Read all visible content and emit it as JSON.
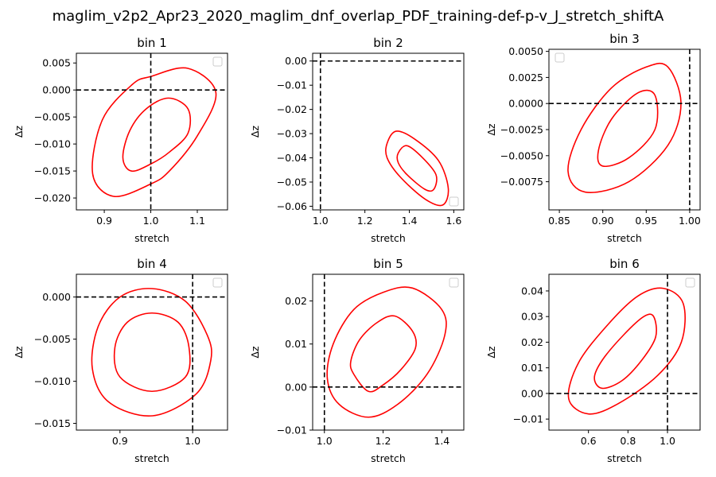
{
  "figure": {
    "suptitle": "maglim_v2p2_Apr23_2020_maglim_dnf_overlap_PDF_training-def-p-v_J_stretch_shiftA"
  },
  "chart_data": [
    {
      "type": "contour",
      "title": "bin 1",
      "xlabel": "stretch",
      "ylabel": "Δz",
      "xlim": [
        0.84,
        1.165
      ],
      "ylim": [
        -0.0222,
        0.0068
      ],
      "xticks": [
        {
          "v": 0.9,
          "label": "0.9"
        },
        {
          "v": 1.0,
          "label": "1.0"
        },
        {
          "v": 1.1,
          "label": "1.1"
        }
      ],
      "yticks": [
        {
          "v": 0.005,
          "label": "0.005"
        },
        {
          "v": 0.0,
          "label": "0.000"
        },
        {
          "v": -0.005,
          "label": "−0.005"
        },
        {
          "v": -0.01,
          "label": "−0.010"
        },
        {
          "v": -0.015,
          "label": "−0.015"
        },
        {
          "v": -0.02,
          "label": "−0.020"
        }
      ],
      "vline": 1.0,
      "hline": 0.0,
      "legend": "upper right",
      "line_color": "#ff0000",
      "contours": [
        [
          [
            1.0,
            -0.0174
          ],
          [
            0.92,
            -0.0197
          ],
          [
            0.875,
            -0.0155
          ],
          [
            0.896,
            -0.0055
          ],
          [
            0.96,
            0.001
          ],
          [
            1.0,
            0.0025
          ],
          [
            1.08,
            0.004
          ],
          [
            1.14,
            -0.0005
          ],
          [
            1.1,
            -0.0085
          ],
          [
            1.04,
            -0.015
          ],
          [
            1.0,
            -0.0174
          ]
        ],
        [
          [
            0.958,
            -0.015
          ],
          [
            0.94,
            -0.0125
          ],
          [
            0.955,
            -0.0075
          ],
          [
            0.99,
            -0.0035
          ],
          [
            1.038,
            -0.0015
          ],
          [
            1.08,
            -0.0035
          ],
          [
            1.08,
            -0.008
          ],
          [
            1.04,
            -0.0115
          ],
          [
            1.0,
            -0.0137
          ],
          [
            0.958,
            -0.015
          ]
        ]
      ]
    },
    {
      "type": "contour",
      "title": "bin 2",
      "xlabel": "stretch",
      "ylabel": "Δz",
      "xlim": [
        0.965,
        1.645
      ],
      "ylim": [
        -0.0615,
        0.0032
      ],
      "xticks": [
        {
          "v": 1.0,
          "label": "1.0"
        },
        {
          "v": 1.2,
          "label": "1.2"
        },
        {
          "v": 1.4,
          "label": "1.4"
        },
        {
          "v": 1.6,
          "label": "1.6"
        }
      ],
      "yticks": [
        {
          "v": 0.0,
          "label": "0.00"
        },
        {
          "v": -0.01,
          "label": "−0.01"
        },
        {
          "v": -0.02,
          "label": "−0.02"
        },
        {
          "v": -0.03,
          "label": "−0.03"
        },
        {
          "v": -0.04,
          "label": "−0.04"
        },
        {
          "v": -0.05,
          "label": "−0.05"
        },
        {
          "v": -0.06,
          "label": "−0.06"
        }
      ],
      "vline": 1.0,
      "hline": 0.0,
      "legend": "lower right",
      "line_color": "#ff0000",
      "contours": [
        [
          [
            1.3,
            -0.034
          ],
          [
            1.34,
            -0.029
          ],
          [
            1.42,
            -0.032
          ],
          [
            1.53,
            -0.041
          ],
          [
            1.575,
            -0.0525
          ],
          [
            1.55,
            -0.0595
          ],
          [
            1.47,
            -0.057
          ],
          [
            1.36,
            -0.048
          ],
          [
            1.3,
            -0.04
          ],
          [
            1.3,
            -0.034
          ]
        ],
        [
          [
            1.35,
            -0.038
          ],
          [
            1.39,
            -0.035
          ],
          [
            1.46,
            -0.04
          ],
          [
            1.52,
            -0.047
          ],
          [
            1.51,
            -0.053
          ],
          [
            1.47,
            -0.053
          ],
          [
            1.39,
            -0.047
          ],
          [
            1.35,
            -0.042
          ],
          [
            1.35,
            -0.038
          ]
        ]
      ]
    },
    {
      "type": "contour",
      "title": "bin 3",
      "xlabel": "stretch",
      "ylabel": "Δz",
      "xlim": [
        0.838,
        1.012
      ],
      "ylim": [
        -0.0102,
        0.0052
      ],
      "xticks": [
        {
          "v": 0.85,
          "label": "0.85"
        },
        {
          "v": 0.9,
          "label": "0.90"
        },
        {
          "v": 0.95,
          "label": "0.95"
        },
        {
          "v": 1.0,
          "label": "1.00"
        }
      ],
      "yticks": [
        {
          "v": 0.005,
          "label": "0.0050"
        },
        {
          "v": 0.0025,
          "label": "0.0025"
        },
        {
          "v": 0.0,
          "label": "0.0000"
        },
        {
          "v": -0.0025,
          "label": "−0.0025"
        },
        {
          "v": -0.005,
          "label": "−0.0050"
        },
        {
          "v": -0.0075,
          "label": "−0.0075"
        }
      ],
      "vline": 1.0,
      "hline": 0.0,
      "legend": "upper left",
      "line_color": "#ff0000",
      "contours": [
        [
          [
            0.88,
            -0.0085
          ],
          [
            0.86,
            -0.0065
          ],
          [
            0.875,
            -0.0025
          ],
          [
            0.91,
            0.0015
          ],
          [
            0.95,
            0.0035
          ],
          [
            0.975,
            0.0035
          ],
          [
            0.99,
            0.0
          ],
          [
            0.975,
            -0.004
          ],
          [
            0.93,
            -0.0075
          ],
          [
            0.88,
            -0.0085
          ]
        ],
        [
          [
            0.9,
            -0.006
          ],
          [
            0.895,
            -0.0045
          ],
          [
            0.91,
            -0.0015
          ],
          [
            0.94,
            0.001
          ],
          [
            0.96,
            0.0008
          ],
          [
            0.96,
            -0.0025
          ],
          [
            0.93,
            -0.0052
          ],
          [
            0.9,
            -0.006
          ]
        ]
      ]
    },
    {
      "type": "contour",
      "title": "bin 4",
      "xlabel": "stretch",
      "ylabel": "Δz",
      "xlim": [
        0.84,
        1.048
      ],
      "ylim": [
        -0.0158,
        0.0027
      ],
      "xticks": [
        {
          "v": 0.9,
          "label": "0.9"
        },
        {
          "v": 1.0,
          "label": "1.0"
        }
      ],
      "yticks": [
        {
          "v": 0.0,
          "label": "0.000"
        },
        {
          "v": -0.005,
          "label": "−0.005"
        },
        {
          "v": -0.01,
          "label": "−0.010"
        },
        {
          "v": -0.015,
          "label": "−0.015"
        }
      ],
      "vline": 1.0,
      "hline": 0.0,
      "legend": "upper right",
      "line_color": "#ff0000",
      "contours": [
        [
          [
            0.944,
            0.001
          ],
          [
            0.99,
            -0.0005
          ],
          [
            1.02,
            -0.0045
          ],
          [
            1.025,
            -0.0075
          ],
          [
            1.005,
            -0.0115
          ],
          [
            0.945,
            -0.0141
          ],
          [
            0.885,
            -0.0125
          ],
          [
            0.862,
            -0.0085
          ],
          [
            0.87,
            -0.0035
          ],
          [
            0.9,
            0.0
          ],
          [
            0.944,
            0.001
          ]
        ],
        [
          [
            0.944,
            -0.0019
          ],
          [
            0.98,
            -0.003
          ],
          [
            0.995,
            -0.006
          ],
          [
            0.99,
            -0.0095
          ],
          [
            0.944,
            -0.0112
          ],
          [
            0.9,
            -0.0095
          ],
          [
            0.893,
            -0.006
          ],
          [
            0.91,
            -0.003
          ],
          [
            0.944,
            -0.0019
          ]
        ]
      ]
    },
    {
      "type": "contour",
      "title": "bin 5",
      "xlabel": "stretch",
      "ylabel": "Δz",
      "xlim": [
        0.96,
        1.475
      ],
      "ylim": [
        -0.01,
        0.0262
      ],
      "xticks": [
        {
          "v": 1.0,
          "label": "1.0"
        },
        {
          "v": 1.2,
          "label": "1.2"
        },
        {
          "v": 1.4,
          "label": "1.4"
        }
      ],
      "yticks": [
        {
          "v": 0.02,
          "label": "0.02"
        },
        {
          "v": 0.01,
          "label": "0.01"
        },
        {
          "v": 0.0,
          "label": "0.00"
        },
        {
          "v": -0.01,
          "label": "−0.01"
        }
      ],
      "vline": 1.0,
      "hline": 0.0,
      "legend": "upper right",
      "line_color": "#ff0000",
      "contours": [
        [
          [
            1.05,
            -0.004
          ],
          [
            1.01,
            0.002
          ],
          [
            1.03,
            0.01
          ],
          [
            1.1,
            0.018
          ],
          [
            1.2,
            0.022
          ],
          [
            1.3,
            0.023
          ],
          [
            1.4,
            0.018
          ],
          [
            1.41,
            0.012
          ],
          [
            1.35,
            0.003
          ],
          [
            1.25,
            -0.004
          ],
          [
            1.15,
            -0.007
          ],
          [
            1.05,
            -0.004
          ]
        ],
        [
          [
            1.1,
            0.003
          ],
          [
            1.09,
            0.006
          ],
          [
            1.12,
            0.011
          ],
          [
            1.18,
            0.015
          ],
          [
            1.24,
            0.0165
          ],
          [
            1.3,
            0.013
          ],
          [
            1.31,
            0.009
          ],
          [
            1.26,
            0.004
          ],
          [
            1.2,
            0.0005
          ],
          [
            1.15,
            -0.001
          ],
          [
            1.1,
            0.003
          ]
        ]
      ]
    },
    {
      "type": "contour",
      "title": "bin 6",
      "xlabel": "stretch",
      "ylabel": "Δz",
      "xlim": [
        0.4,
        1.165
      ],
      "ylim": [
        -0.0143,
        0.0465
      ],
      "xticks": [
        {
          "v": 0.6,
          "label": "0.6"
        },
        {
          "v": 0.8,
          "label": "0.8"
        },
        {
          "v": 1.0,
          "label": "1.0"
        }
      ],
      "yticks": [
        {
          "v": 0.04,
          "label": "0.04"
        },
        {
          "v": 0.03,
          "label": "0.03"
        },
        {
          "v": 0.02,
          "label": "0.02"
        },
        {
          "v": 0.01,
          "label": "0.01"
        },
        {
          "v": 0.0,
          "label": "0.00"
        },
        {
          "v": -0.01,
          "label": "−0.01"
        }
      ],
      "vline": 1.0,
      "hline": 0.0,
      "legend": "upper right",
      "line_color": "#ff0000",
      "contours": [
        [
          [
            0.6,
            -0.008
          ],
          [
            0.5,
            -0.002
          ],
          [
            0.55,
            0.012
          ],
          [
            0.7,
            0.027
          ],
          [
            0.85,
            0.038
          ],
          [
            0.98,
            0.041
          ],
          [
            1.08,
            0.035
          ],
          [
            1.07,
            0.02
          ],
          [
            0.95,
            0.007
          ],
          [
            0.75,
            -0.004
          ],
          [
            0.6,
            -0.008
          ]
        ],
        [
          [
            0.67,
            0.002
          ],
          [
            0.63,
            0.006
          ],
          [
            0.67,
            0.013
          ],
          [
            0.78,
            0.023
          ],
          [
            0.88,
            0.03
          ],
          [
            0.93,
            0.03
          ],
          [
            0.94,
            0.022
          ],
          [
            0.87,
            0.013
          ],
          [
            0.77,
            0.005
          ],
          [
            0.67,
            0.002
          ]
        ]
      ]
    }
  ]
}
